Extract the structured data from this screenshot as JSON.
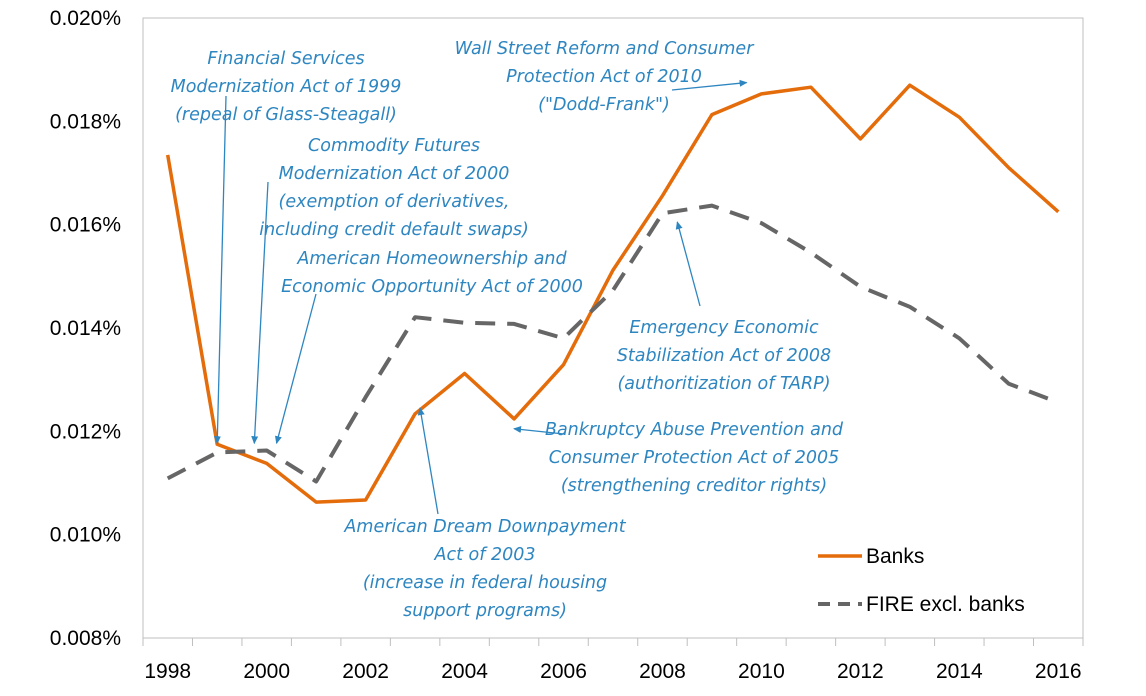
{
  "chart_data": {
    "type": "line",
    "title": "",
    "xlabel": "",
    "ylabel": "",
    "x": [
      1998,
      1999,
      2000,
      2001,
      2002,
      2003,
      2004,
      2005,
      2006,
      2007,
      2008,
      2009,
      2010,
      2011,
      2012,
      2013,
      2014,
      2015,
      2016
    ],
    "xlim": [
      1997.5,
      2016.5
    ],
    "ylim": [
      0.008,
      0.02
    ],
    "x_ticks": [
      "1998",
      "2000",
      "2002",
      "2004",
      "2006",
      "2008",
      "2010",
      "2012",
      "2014",
      "2016"
    ],
    "y_ticks": [
      "0.008%",
      "0.010%",
      "0.012%",
      "0.014%",
      "0.016%",
      "0.018%",
      "0.020%"
    ],
    "grid": false,
    "legend_position": "bottom-right",
    "series": [
      {
        "name": "Banks",
        "color": "#E46C0A",
        "style": "solid",
        "values": [
          0.01735,
          0.01175,
          0.01138,
          0.01063,
          0.01067,
          0.01234,
          0.01312,
          0.01224,
          0.01329,
          0.01512,
          0.01656,
          0.01813,
          0.01853,
          0.01866,
          0.01766,
          0.0187,
          0.01808,
          0.0171,
          0.01625
        ]
      },
      {
        "name": "FIRE excl. banks",
        "color": "#666666",
        "style": "dashed",
        "values": [
          0.01109,
          0.01159,
          0.01163,
          0.01103,
          0.01266,
          0.01421,
          0.0141,
          0.01408,
          0.0138,
          0.01473,
          0.01622,
          0.01637,
          0.01603,
          0.01546,
          0.0148,
          0.01441,
          0.0138,
          0.01292,
          0.01256
        ]
      }
    ],
    "annotations": [
      {
        "lines": [
          "Financial Services",
          "Modernization Act of 1999",
          "(repeal of Glass-Steagall)"
        ],
        "arrow_x": 1999.0,
        "arrow_y": 0.01177
      },
      {
        "lines": [
          "Commodity Futures",
          "Modernization Act of 2000",
          "(exemption of derivatives,",
          "including credit default swaps)"
        ],
        "arrow_x": 1999.75,
        "arrow_y": 0.01177
      },
      {
        "lines": [
          "American Homeownership and",
          "Economic Opportunity Act of 2000"
        ],
        "arrow_x": 2000.2,
        "arrow_y": 0.01177
      },
      {
        "lines": [
          "American Dream Downpayment",
          "Act of 2003",
          "(increase in federal housing",
          "support programs)"
        ],
        "arrow_x": 2003.1,
        "arrow_y": 0.01245
      },
      {
        "lines": [
          "Bankruptcy Abuse Prevention and",
          "Consumer Protection Act of 2005",
          "(strengthening creditor rights)"
        ],
        "arrow_x": 2005.0,
        "arrow_y": 0.01205
      },
      {
        "lines": [
          "Emergency Economic",
          "Stabilization Act of 2008",
          "(authoritization of TARP)"
        ],
        "arrow_x": 2008.3,
        "arrow_y": 0.01605
      },
      {
        "lines": [
          "Wall Street Reform and Consumer",
          "Protection Act of 2010",
          "(\"Dodd-Frank\")"
        ],
        "arrow_x": 2009.7,
        "arrow_y": 0.01875
      }
    ]
  }
}
